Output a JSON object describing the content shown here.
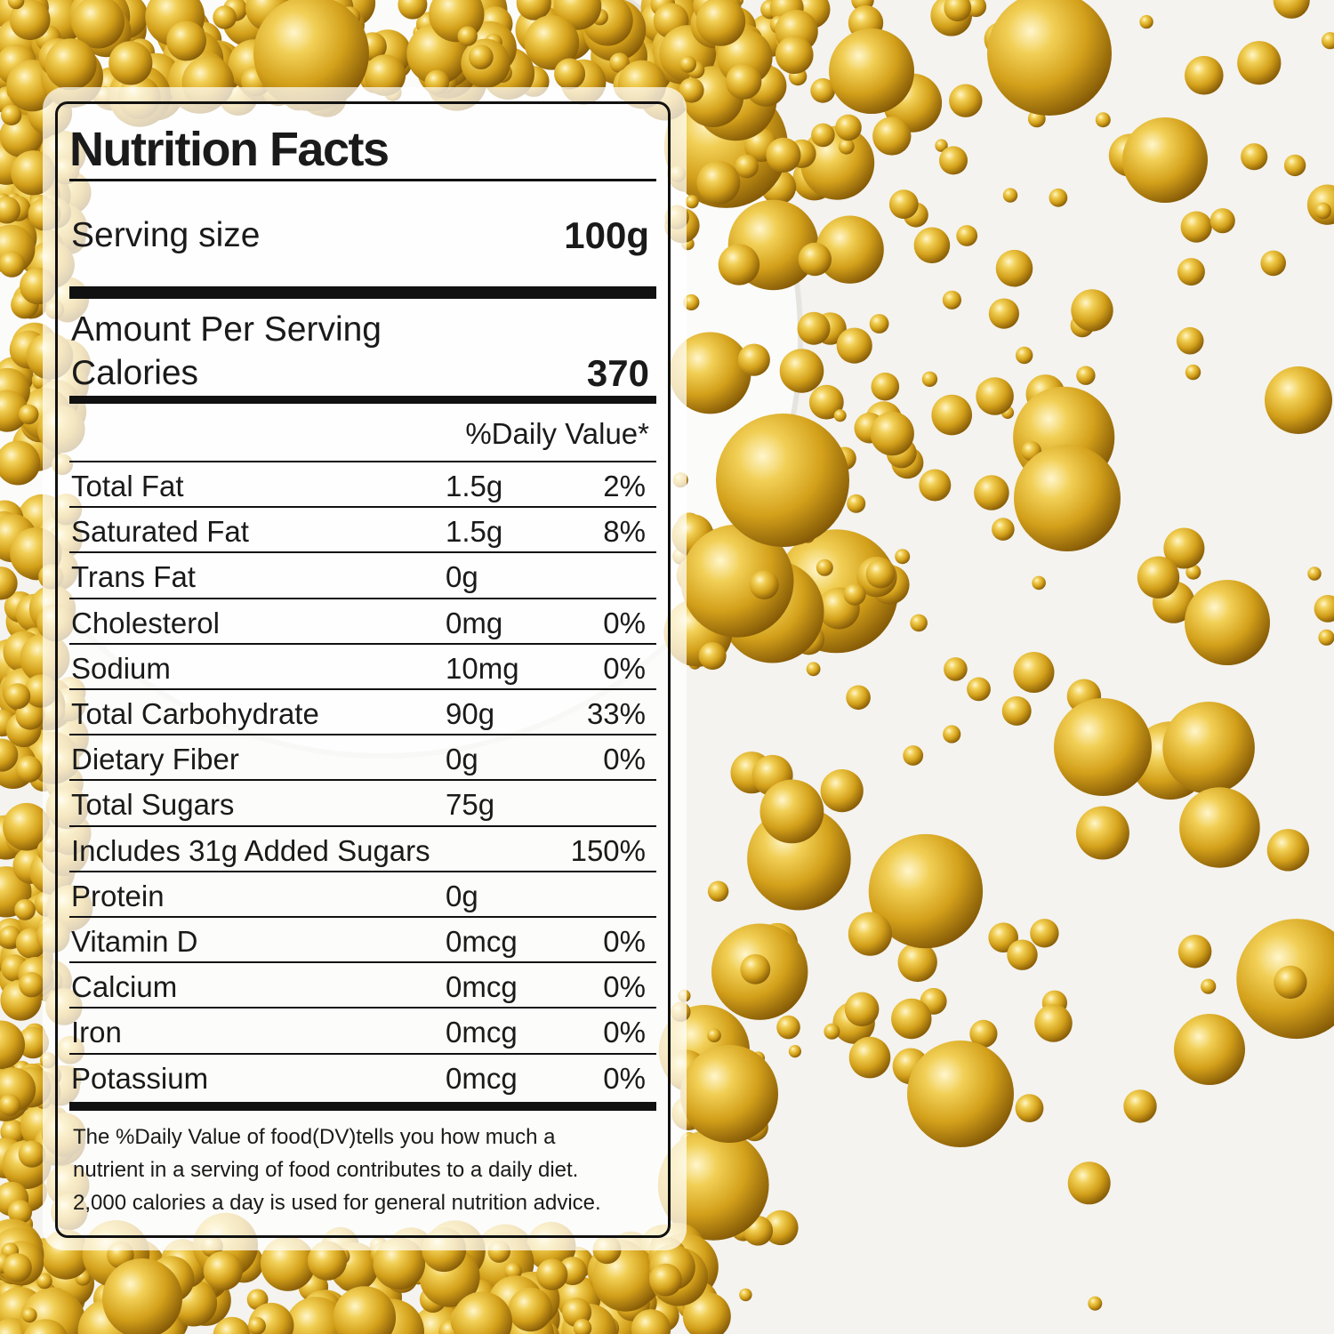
{
  "label": {
    "title": "Nutrition Facts",
    "serving_size_label": "Serving size",
    "serving_size_value": "100g",
    "amount_per_serving": "Amount Per Serving",
    "calories_label": "Calories",
    "calories_value": "370",
    "daily_value_header": "%Daily Value*",
    "nutrients": [
      {
        "name": "Total Fat",
        "amount": "1.5g",
        "dv": "2%"
      },
      {
        "name": "Saturated Fat",
        "amount": "1.5g",
        "dv": "8%"
      },
      {
        "name": "Trans Fat",
        "amount": "0g",
        "dv": ""
      },
      {
        "name": "Cholesterol",
        "amount": "0mg",
        "dv": "0%"
      },
      {
        "name": "Sodium",
        "amount": "10mg",
        "dv": "0%"
      },
      {
        "name": "Total Carbohydrate",
        "amount": "90g",
        "dv": "33%"
      },
      {
        "name": "Dietary Fiber",
        "amount": "0g",
        "dv": "0%"
      },
      {
        "name": "Total Sugars",
        "amount": "75g",
        "dv": ""
      },
      {
        "name": "Includes 31g Added Sugars",
        "amount": "",
        "dv": "150%"
      },
      {
        "name": "Protein",
        "amount": "0g",
        "dv": ""
      },
      {
        "name": "Vitamin D",
        "amount": "0mcg",
        "dv": "0%"
      },
      {
        "name": "Calcium",
        "amount": "0mcg",
        "dv": "0%"
      },
      {
        "name": "Iron",
        "amount": "0mcg",
        "dv": "0%"
      },
      {
        "name": "Potassium",
        "amount": "0mcg",
        "dv": "0%"
      }
    ],
    "footnote": [
      "The %Daily Value of food(DV)tells you how much a",
      "nutrient in a serving of food contributes to a daily diet.",
      "2,000 calories a day is used for general nutrition advice."
    ]
  },
  "colors": {
    "gold_light": "#fbe9a0",
    "gold_mid": "#d9a91c",
    "gold_dark": "#8a5e05",
    "background": "#f4f3ef"
  }
}
